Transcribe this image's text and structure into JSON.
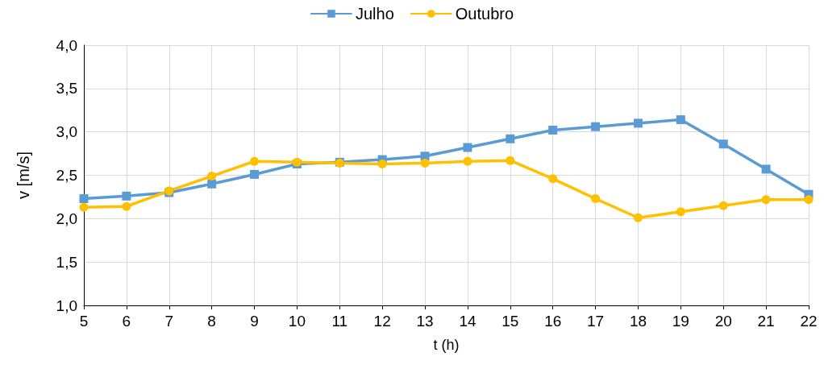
{
  "chart_data": {
    "type": "line",
    "xlabel": "t (h)",
    "ylabel": "v [m/s]",
    "x": [
      5,
      6,
      7,
      8,
      9,
      10,
      11,
      12,
      13,
      14,
      15,
      16,
      17,
      18,
      19,
      20,
      21,
      22
    ],
    "series": [
      {
        "name": "Julho",
        "color": "#5b9bd5",
        "marker": "square",
        "values": [
          2.23,
          2.26,
          2.3,
          2.4,
          2.51,
          2.63,
          2.65,
          2.68,
          2.72,
          2.82,
          2.92,
          3.02,
          3.06,
          3.1,
          3.14,
          2.86,
          2.57,
          2.28
        ]
      },
      {
        "name": "Outubro",
        "color": "#ffc000",
        "marker": "circle",
        "values": [
          2.13,
          2.14,
          2.32,
          2.49,
          2.66,
          2.65,
          2.64,
          2.63,
          2.64,
          2.66,
          2.67,
          2.46,
          2.23,
          2.01,
          2.08,
          2.15,
          2.22,
          2.22
        ]
      }
    ],
    "xlim": [
      5,
      22
    ],
    "xticks": [
      5,
      6,
      7,
      8,
      9,
      10,
      11,
      12,
      13,
      14,
      15,
      16,
      17,
      18,
      19,
      20,
      21,
      22
    ],
    "ylim": [
      1,
      4
    ],
    "yticks": [
      {
        "value": 1,
        "label": "1,0"
      },
      {
        "value": 1.5,
        "label": "1,5"
      },
      {
        "value": 2,
        "label": "2,0"
      },
      {
        "value": 2.5,
        "label": "2,5"
      },
      {
        "value": 3,
        "label": "3,0"
      },
      {
        "value": 3.5,
        "label": "3,5"
      },
      {
        "value": 4,
        "label": "4,0"
      }
    ],
    "grid": true,
    "legend": "top",
    "line_style": "solid"
  }
}
